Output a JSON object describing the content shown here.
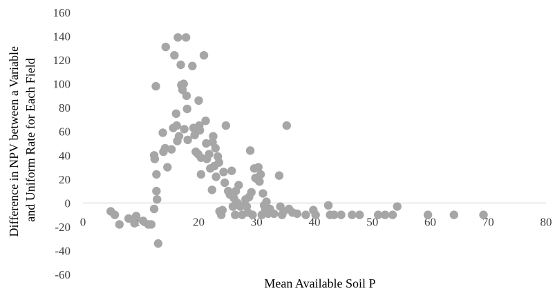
{
  "chart_data": {
    "type": "scatter",
    "xlabel": "Mean Available Soil P",
    "ylabel_lines": [
      "Difference in NPV between a Variable",
      "and Uniform Rate for Each Field"
    ],
    "xlim": [
      0,
      80
    ],
    "ylim": [
      -60,
      160
    ],
    "x_ticks": [
      "0",
      "10",
      "20",
      "30",
      "40",
      "50",
      "60",
      "70",
      "80"
    ],
    "y_ticks": [
      "-60",
      "-40",
      "-20",
      "0",
      "20",
      "40",
      "60",
      "80",
      "100",
      "120",
      "140",
      "160"
    ],
    "grid": false,
    "legend": "none",
    "marker_color": "#a6a6a6",
    "axis_color": "#d9d9d9",
    "points": [
      {
        "x": 4.8,
        "y": -7
      },
      {
        "x": 5.5,
        "y": -10
      },
      {
        "x": 6.3,
        "y": -18
      },
      {
        "x": 7.9,
        "y": -13
      },
      {
        "x": 8.9,
        "y": -17
      },
      {
        "x": 9.2,
        "y": -11
      },
      {
        "x": 10.4,
        "y": -15
      },
      {
        "x": 11.3,
        "y": -18
      },
      {
        "x": 11.8,
        "y": -18
      },
      {
        "x": 12.3,
        "y": -5
      },
      {
        "x": 12.3,
        "y": 40
      },
      {
        "x": 12.4,
        "y": 37
      },
      {
        "x": 12.6,
        "y": 98
      },
      {
        "x": 12.7,
        "y": 24
      },
      {
        "x": 12.7,
        "y": 10
      },
      {
        "x": 12.8,
        "y": 3
      },
      {
        "x": 13.0,
        "y": -34
      },
      {
        "x": 13.8,
        "y": 59
      },
      {
        "x": 13.9,
        "y": 43
      },
      {
        "x": 14.2,
        "y": 46
      },
      {
        "x": 14.3,
        "y": 131
      },
      {
        "x": 14.6,
        "y": 30
      },
      {
        "x": 15.3,
        "y": 45
      },
      {
        "x": 15.6,
        "y": 63
      },
      {
        "x": 15.8,
        "y": 124
      },
      {
        "x": 16.1,
        "y": 75
      },
      {
        "x": 16.2,
        "y": 65
      },
      {
        "x": 16.3,
        "y": 52
      },
      {
        "x": 16.4,
        "y": 139
      },
      {
        "x": 16.6,
        "y": 56
      },
      {
        "x": 16.9,
        "y": 116
      },
      {
        "x": 17.0,
        "y": 99
      },
      {
        "x": 17.2,
        "y": 95
      },
      {
        "x": 17.4,
        "y": 100
      },
      {
        "x": 17.5,
        "y": 62
      },
      {
        "x": 17.8,
        "y": 139
      },
      {
        "x": 17.9,
        "y": 90
      },
      {
        "x": 18.0,
        "y": 79
      },
      {
        "x": 18.1,
        "y": 53
      },
      {
        "x": 18.9,
        "y": 115
      },
      {
        "x": 19.1,
        "y": 63
      },
      {
        "x": 19.3,
        "y": 57
      },
      {
        "x": 19.5,
        "y": 43
      },
      {
        "x": 19.9,
        "y": 41
      },
      {
        "x": 20.0,
        "y": 86
      },
      {
        "x": 20.1,
        "y": 65
      },
      {
        "x": 20.2,
        "y": 61
      },
      {
        "x": 20.4,
        "y": 38
      },
      {
        "x": 20.4,
        "y": 24
      },
      {
        "x": 20.9,
        "y": 124
      },
      {
        "x": 21.2,
        "y": 69
      },
      {
        "x": 21.3,
        "y": 50
      },
      {
        "x": 21.4,
        "y": 37
      },
      {
        "x": 21.8,
        "y": 41
      },
      {
        "x": 22.0,
        "y": 29
      },
      {
        "x": 22.3,
        "y": 11
      },
      {
        "x": 22.4,
        "y": 51
      },
      {
        "x": 22.5,
        "y": 56
      },
      {
        "x": 22.7,
        "y": 31
      },
      {
        "x": 22.9,
        "y": 46
      },
      {
        "x": 23.0,
        "y": 22
      },
      {
        "x": 23.3,
        "y": 39
      },
      {
        "x": 23.5,
        "y": 34
      },
      {
        "x": 23.6,
        "y": -7
      },
      {
        "x": 23.9,
        "y": -10
      },
      {
        "x": 24.1,
        "y": -6
      },
      {
        "x": 24.3,
        "y": 26
      },
      {
        "x": 24.5,
        "y": 17
      },
      {
        "x": 24.7,
        "y": 65
      },
      {
        "x": 25.1,
        "y": 10
      },
      {
        "x": 25.4,
        "y": 7
      },
      {
        "x": 25.7,
        "y": 27
      },
      {
        "x": 25.9,
        "y": -3
      },
      {
        "x": 26.1,
        "y": 4
      },
      {
        "x": 26.3,
        "y": -10
      },
      {
        "x": 26.4,
        "y": 10
      },
      {
        "x": 26.7,
        "y": 0
      },
      {
        "x": 26.9,
        "y": 15
      },
      {
        "x": 27.2,
        "y": -3
      },
      {
        "x": 27.5,
        "y": -10
      },
      {
        "x": 27.8,
        "y": -2
      },
      {
        "x": 28.1,
        "y": 3
      },
      {
        "x": 28.3,
        "y": -3
      },
      {
        "x": 28.5,
        "y": -8
      },
      {
        "x": 28.7,
        "y": 5
      },
      {
        "x": 28.9,
        "y": 44
      },
      {
        "x": 29.1,
        "y": 9
      },
      {
        "x": 29.3,
        "y": -10
      },
      {
        "x": 29.6,
        "y": 29
      },
      {
        "x": 29.8,
        "y": 21
      },
      {
        "x": 30.1,
        "y": 20
      },
      {
        "x": 30.3,
        "y": 30
      },
      {
        "x": 30.5,
        "y": 18
      },
      {
        "x": 30.7,
        "y": 24
      },
      {
        "x": 30.9,
        "y": -10
      },
      {
        "x": 31.1,
        "y": 8
      },
      {
        "x": 31.3,
        "y": -2
      },
      {
        "x": 31.5,
        "y": -6
      },
      {
        "x": 31.7,
        "y": 1
      },
      {
        "x": 32.0,
        "y": -9
      },
      {
        "x": 32.3,
        "y": -5
      },
      {
        "x": 33.0,
        "y": -9
      },
      {
        "x": 33.9,
        "y": 23
      },
      {
        "x": 34.1,
        "y": -3
      },
      {
        "x": 34.4,
        "y": -10
      },
      {
        "x": 34.7,
        "y": -7
      },
      {
        "x": 35.2,
        "y": 65
      },
      {
        "x": 35.6,
        "y": -5
      },
      {
        "x": 36.2,
        "y": -8
      },
      {
        "x": 37.0,
        "y": -9
      },
      {
        "x": 38.5,
        "y": -10
      },
      {
        "x": 39.8,
        "y": -6
      },
      {
        "x": 40.2,
        "y": -10
      },
      {
        "x": 42.4,
        "y": -2
      },
      {
        "x": 42.7,
        "y": -10
      },
      {
        "x": 43.4,
        "y": -10
      },
      {
        "x": 44.6,
        "y": -10
      },
      {
        "x": 46.5,
        "y": -10
      },
      {
        "x": 47.8,
        "y": -10
      },
      {
        "x": 51.0,
        "y": -10
      },
      {
        "x": 52.2,
        "y": -10
      },
      {
        "x": 53.5,
        "y": -10
      },
      {
        "x": 54.3,
        "y": -3
      },
      {
        "x": 59.6,
        "y": -10
      },
      {
        "x": 64.1,
        "y": -10
      },
      {
        "x": 69.2,
        "y": -10
      }
    ]
  }
}
